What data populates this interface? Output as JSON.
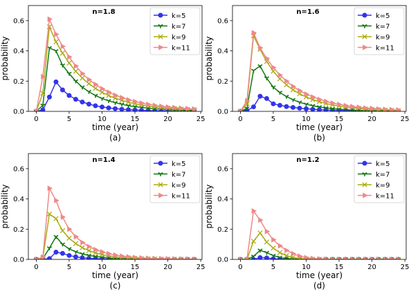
{
  "chart_data": [
    {
      "type": "line",
      "title": "n=1.8",
      "xlabel": "time (year)",
      "ylabel": "probability",
      "caption": "(a)",
      "xlim": [
        -1.2,
        25.2
      ],
      "ylim": [
        0,
        0.7
      ],
      "xticks": [
        0,
        5,
        10,
        15,
        20,
        25
      ],
      "yticks": [
        0.0,
        0.2,
        0.4,
        0.6
      ],
      "yticklabels": [
        "0.0",
        "0.2",
        "0.4",
        "0.6"
      ],
      "legend_position": "top-right",
      "x": [
        0,
        1,
        2,
        3,
        4,
        5,
        6,
        7,
        8,
        9,
        10,
        11,
        12,
        13,
        14,
        15,
        16,
        17,
        18,
        19,
        20,
        21,
        22,
        23,
        24
      ],
      "series": [
        {
          "name": "k=5",
          "color": "#3333ee",
          "marker": "circle",
          "values": [
            0.0,
            0.01,
            0.095,
            0.195,
            0.142,
            0.105,
            0.08,
            0.062,
            0.048,
            0.037,
            0.029,
            0.023,
            0.018,
            0.014,
            0.011,
            0.009,
            0.007,
            0.005,
            0.004,
            0.003,
            0.003,
            0.002,
            0.002,
            0.001,
            0.001
          ]
        },
        {
          "name": "k=7",
          "color": "#117711",
          "marker": "tri_down",
          "values": [
            0.0,
            0.04,
            0.42,
            0.4,
            0.305,
            0.25,
            0.2,
            0.16,
            0.13,
            0.105,
            0.085,
            0.07,
            0.057,
            0.047,
            0.038,
            0.031,
            0.026,
            0.021,
            0.017,
            0.014,
            0.012,
            0.01,
            0.008,
            0.007,
            0.006
          ]
        },
        {
          "name": "k=9",
          "color": "#aaaa11",
          "marker": "x",
          "values": [
            0.0,
            0.12,
            0.56,
            0.46,
            0.385,
            0.32,
            0.265,
            0.22,
            0.183,
            0.152,
            0.126,
            0.105,
            0.087,
            0.073,
            0.061,
            0.051,
            0.043,
            0.036,
            0.03,
            0.025,
            0.021,
            0.018,
            0.015,
            0.013,
            0.011
          ]
        },
        {
          "name": "k=11",
          "color": "#ee8888",
          "marker": "tri_right",
          "values": [
            0.0,
            0.23,
            0.61,
            0.51,
            0.43,
            0.36,
            0.3,
            0.25,
            0.21,
            0.178,
            0.15,
            0.127,
            0.107,
            0.091,
            0.077,
            0.065,
            0.055,
            0.047,
            0.04,
            0.034,
            0.029,
            0.025,
            0.021,
            0.018,
            0.015
          ]
        }
      ]
    },
    {
      "type": "line",
      "title": "n=1.6",
      "xlabel": "time (year)",
      "ylabel": "probability",
      "caption": "(b)",
      "xlim": [
        -1.2,
        25.2
      ],
      "ylim": [
        0,
        0.7
      ],
      "xticks": [
        0,
        5,
        10,
        15,
        20,
        25
      ],
      "yticks": [
        0.0,
        0.2,
        0.4,
        0.6
      ],
      "yticklabels": [
        "0.0",
        "0.2",
        "0.4",
        "0.6"
      ],
      "legend_position": "top-right",
      "x": [
        0,
        1,
        2,
        3,
        4,
        5,
        6,
        7,
        8,
        9,
        10,
        11,
        12,
        13,
        14,
        15,
        16,
        17,
        18,
        19,
        20,
        21,
        22,
        23,
        24
      ],
      "series": [
        {
          "name": "k=5",
          "color": "#3333ee",
          "marker": "circle",
          "values": [
            0.0,
            0.005,
            0.03,
            0.1,
            0.085,
            0.05,
            0.04,
            0.032,
            0.026,
            0.021,
            0.017,
            0.014,
            0.011,
            0.009,
            0.007,
            0.006,
            0.005,
            0.004,
            0.003,
            0.003,
            0.002,
            0.002,
            0.001,
            0.001,
            0.001
          ]
        },
        {
          "name": "k=7",
          "color": "#117711",
          "marker": "tri_down",
          "values": [
            0.0,
            0.02,
            0.27,
            0.3,
            0.22,
            0.16,
            0.125,
            0.098,
            0.077,
            0.06,
            0.047,
            0.037,
            0.029,
            0.023,
            0.018,
            0.014,
            0.011,
            0.009,
            0.007,
            0.005,
            0.004,
            0.003,
            0.003,
            0.002,
            0.002
          ]
        },
        {
          "name": "k=9",
          "color": "#aaaa11",
          "marker": "x",
          "values": [
            0.0,
            0.05,
            0.5,
            0.41,
            0.33,
            0.265,
            0.215,
            0.175,
            0.142,
            0.116,
            0.095,
            0.078,
            0.064,
            0.052,
            0.043,
            0.035,
            0.029,
            0.024,
            0.02,
            0.016,
            0.013,
            0.011,
            0.009,
            0.007,
            0.006
          ]
        },
        {
          "name": "k=11",
          "color": "#ee8888",
          "marker": "tri_right",
          "values": [
            0.0,
            0.07,
            0.52,
            0.42,
            0.35,
            0.29,
            0.24,
            0.2,
            0.165,
            0.137,
            0.114,
            0.095,
            0.079,
            0.066,
            0.055,
            0.046,
            0.038,
            0.032,
            0.027,
            0.022,
            0.019,
            0.016,
            0.013,
            0.011,
            0.009
          ]
        }
      ]
    },
    {
      "type": "line",
      "title": "n=1.4",
      "xlabel": "time (year)",
      "ylabel": "probability",
      "caption": "(c)",
      "xlim": [
        -1.2,
        25.2
      ],
      "ylim": [
        0,
        0.7
      ],
      "xticks": [
        0,
        5,
        10,
        15,
        20,
        25
      ],
      "yticks": [
        0.0,
        0.2,
        0.4,
        0.6
      ],
      "yticklabels": [
        "0.0",
        "0.2",
        "0.4",
        "0.6"
      ],
      "legend_position": "top-right",
      "x": [
        0,
        1,
        2,
        3,
        4,
        5,
        6,
        7,
        8,
        9,
        10,
        11,
        12,
        13,
        14,
        15,
        16,
        17,
        18,
        19,
        20,
        21,
        22,
        23,
        24
      ],
      "series": [
        {
          "name": "k=5",
          "color": "#3333ee",
          "marker": "circle",
          "values": [
            0.0,
            0.0,
            0.005,
            0.048,
            0.04,
            0.026,
            0.017,
            0.011,
            0.007,
            0.005,
            0.003,
            0.002,
            0.001,
            0.001,
            0.001,
            0.0,
            0.0,
            0.0,
            0.0,
            0.0,
            0.0,
            0.0,
            0.0,
            0.0,
            0.0
          ]
        },
        {
          "name": "k=7",
          "color": "#117711",
          "marker": "tri_down",
          "values": [
            0.0,
            0.005,
            0.075,
            0.15,
            0.1,
            0.07,
            0.05,
            0.036,
            0.026,
            0.019,
            0.014,
            0.01,
            0.007,
            0.005,
            0.004,
            0.003,
            0.002,
            0.001,
            0.001,
            0.001,
            0.0,
            0.0,
            0.0,
            0.0,
            0.0
          ]
        },
        {
          "name": "k=9",
          "color": "#aaaa11",
          "marker": "x",
          "values": [
            0.0,
            0.01,
            0.3,
            0.27,
            0.19,
            0.14,
            0.105,
            0.078,
            0.058,
            0.043,
            0.032,
            0.024,
            0.018,
            0.013,
            0.01,
            0.007,
            0.005,
            0.004,
            0.003,
            0.002,
            0.002,
            0.001,
            0.001,
            0.001,
            0.0
          ]
        },
        {
          "name": "k=11",
          "color": "#ee8888",
          "marker": "tri_right",
          "values": [
            0.0,
            0.015,
            0.47,
            0.39,
            0.28,
            0.2,
            0.15,
            0.112,
            0.085,
            0.065,
            0.05,
            0.038,
            0.029,
            0.022,
            0.017,
            0.013,
            0.01,
            0.008,
            0.006,
            0.005,
            0.004,
            0.003,
            0.002,
            0.002,
            0.001
          ]
        }
      ]
    },
    {
      "type": "line",
      "title": "n=1.2",
      "xlabel": "time (year)",
      "ylabel": "probability",
      "caption": "(d)",
      "xlim": [
        -1.2,
        25.2
      ],
      "ylim": [
        0,
        0.7
      ],
      "xticks": [
        0,
        5,
        10,
        15,
        20,
        25
      ],
      "yticks": [
        0.0,
        0.2,
        0.4,
        0.6
      ],
      "yticklabels": [
        "0.0",
        "0.2",
        "0.4",
        "0.6"
      ],
      "legend_position": "top-right",
      "x": [
        0,
        1,
        2,
        3,
        4,
        5,
        6,
        7,
        8,
        9,
        10,
        11,
        12,
        13,
        14,
        15,
        16,
        17,
        18,
        19,
        20,
        21,
        22,
        23,
        24
      ],
      "series": [
        {
          "name": "k=5",
          "color": "#3333ee",
          "marker": "circle",
          "values": [
            0.0,
            0.0,
            0.0,
            0.012,
            0.01,
            0.004,
            0.002,
            0.001,
            0.0,
            0.0,
            0.0,
            0.0,
            0.0,
            0.0,
            0.0,
            0.0,
            0.0,
            0.0,
            0.0,
            0.0,
            0.0,
            0.0,
            0.0,
            0.0,
            0.0
          ]
        },
        {
          "name": "k=7",
          "color": "#117711",
          "marker": "tri_down",
          "values": [
            0.0,
            0.0,
            0.02,
            0.06,
            0.045,
            0.025,
            0.013,
            0.006,
            0.003,
            0.001,
            0.0,
            0.0,
            0.0,
            0.0,
            0.0,
            0.0,
            0.0,
            0.0,
            0.0,
            0.0,
            0.0,
            0.0,
            0.0,
            0.0,
            0.0
          ]
        },
        {
          "name": "k=9",
          "color": "#aaaa11",
          "marker": "x",
          "values": [
            0.0,
            0.0,
            0.12,
            0.175,
            0.115,
            0.075,
            0.045,
            0.025,
            0.013,
            0.006,
            0.003,
            0.001,
            0.0,
            0.0,
            0.0,
            0.0,
            0.0,
            0.0,
            0.0,
            0.0,
            0.0,
            0.0,
            0.0,
            0.0,
            0.0
          ]
        },
        {
          "name": "k=11",
          "color": "#ee8888",
          "marker": "tri_right",
          "values": [
            0.0,
            0.0,
            0.32,
            0.26,
            0.185,
            0.13,
            0.09,
            0.06,
            0.038,
            0.022,
            0.012,
            0.006,
            0.003,
            0.001,
            0.0,
            0.0,
            0.0,
            0.0,
            0.0,
            0.0,
            0.0,
            0.0,
            0.0,
            0.0,
            0.0
          ]
        }
      ]
    }
  ]
}
